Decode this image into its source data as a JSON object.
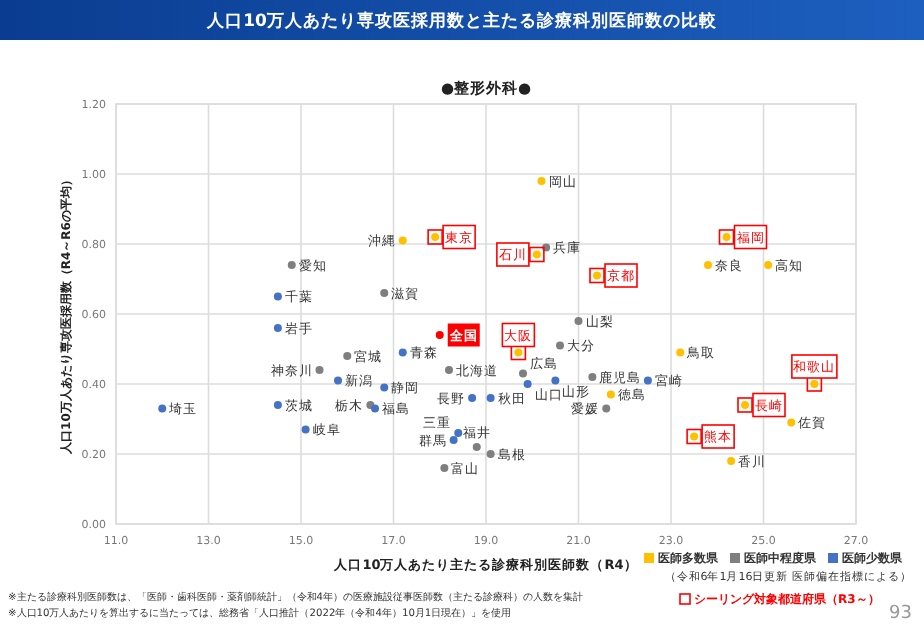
{
  "chart_data": {
    "type": "scatter",
    "title": "人口10万人あたり専攻医採用数と主たる診療科別医師数の比較",
    "subtitle": "●整形外科●",
    "xlabel": "人口10万人あたり主たる診療科別医師数（R4）",
    "ylabel": "人口10万人あたり専攻医採用数（R4～R6の平均）",
    "xlim": [
      11,
      27
    ],
    "ylim": [
      0,
      1.2
    ],
    "xticks": [
      {
        "value": 11,
        "label": "11.0"
      },
      {
        "value": 13,
        "label": "13.0"
      },
      {
        "value": 15,
        "label": "15.0"
      },
      {
        "value": 17,
        "label": "17.0"
      },
      {
        "value": 19,
        "label": "19.0"
      },
      {
        "value": 21,
        "label": "21.0"
      },
      {
        "value": 23,
        "label": "23.0"
      },
      {
        "value": 25,
        "label": "25.0"
      },
      {
        "value": 27,
        "label": "27.0"
      }
    ],
    "yticks": [
      {
        "value": 0,
        "label": "0.00"
      },
      {
        "value": 0.2,
        "label": "0.20"
      },
      {
        "value": 0.4,
        "label": "0.40"
      },
      {
        "value": 0.6,
        "label": "0.60"
      },
      {
        "value": 0.8,
        "label": "0.80"
      },
      {
        "value": 1,
        "label": "1.00"
      },
      {
        "value": 1.2,
        "label": "1.20"
      }
    ],
    "grid": true,
    "legend": "bottom right",
    "marker": "circle",
    "series": [
      {
        "name": "医師多数県",
        "color": "#ffc000",
        "x": [
          17.2,
          17.9,
          20.2,
          20.1,
          21.4,
          24.2,
          23.8,
          25.1,
          19.7,
          21.7,
          23.2,
          23.5,
          24.3,
          24.6,
          25.6,
          26.1
        ],
        "values": [
          0.81,
          0.82,
          0.98,
          0.77,
          0.71,
          0.82,
          0.74,
          0.74,
          0.49,
          0.37,
          0.49,
          0.25,
          0.18,
          0.34,
          0.29,
          0.4
        ]
      },
      {
        "name": "医師中程度県",
        "color": "#7f7f7f",
        "x": [
          14.8,
          16.8,
          16.0,
          15.4,
          16.5,
          18.2,
          18.1,
          18.8,
          19.1,
          19.8,
          20.6,
          21.0,
          21.3,
          21.6,
          20.3
        ],
        "values": [
          0.74,
          0.66,
          0.48,
          0.44,
          0.34,
          0.44,
          0.16,
          0.22,
          0.2,
          0.43,
          0.51,
          0.58,
          0.42,
          0.33,
          0.79
        ]
      },
      {
        "name": "医師少数県",
        "color": "#4472c4",
        "x": [
          14.5,
          14.5,
          17.2,
          15.8,
          12.0,
          14.5,
          15.1,
          16.8,
          16.6,
          18.7,
          18.3,
          18.4,
          19.1,
          19.9,
          20.5,
          22.5
        ],
        "values": [
          0.65,
          0.56,
          0.49,
          0.41,
          0.33,
          0.34,
          0.27,
          0.39,
          0.33,
          0.36,
          0.24,
          0.26,
          0.36,
          0.4,
          0.41,
          0.41
        ]
      },
      {
        "name": "全国",
        "color": "#ff0000",
        "x": [
          18.0
        ],
        "values": [
          0.54
        ]
      },
      {
        "name": "シーリング対象都道府県（R3～）",
        "color": "#ff0000",
        "marker": "square",
        "x": [
          17.9,
          20.1,
          21.4,
          24.2,
          19.7,
          23.5,
          24.6,
          26.1
        ],
        "values": [
          0.82,
          0.77,
          0.71,
          0.82,
          0.49,
          0.25,
          0.34,
          0.4
        ]
      }
    ],
    "annotations": [
      {
        "text": "沖縄",
        "x": 17.2,
        "y": 0.81
      },
      {
        "text": "東京",
        "x": 17.9,
        "y": 0.82
      },
      {
        "text": "岡山",
        "x": 20.2,
        "y": 0.98
      },
      {
        "text": "石川",
        "x": 20.1,
        "y": 0.77
      },
      {
        "text": "京都",
        "x": 21.4,
        "y": 0.71
      },
      {
        "text": "福岡",
        "x": 24.2,
        "y": 0.82
      },
      {
        "text": "奈良",
        "x": 23.8,
        "y": 0.74
      },
      {
        "text": "高知",
        "x": 25.1,
        "y": 0.74
      },
      {
        "text": "大阪",
        "x": 19.7,
        "y": 0.49
      },
      {
        "text": "徳島",
        "x": 21.7,
        "y": 0.37
      },
      {
        "text": "鳥取",
        "x": 23.2,
        "y": 0.49
      },
      {
        "text": "熊本",
        "x": 23.5,
        "y": 0.25
      },
      {
        "text": "香川",
        "x": 24.3,
        "y": 0.18
      },
      {
        "text": "長崎",
        "x": 24.6,
        "y": 0.34
      },
      {
        "text": "佐賀",
        "x": 25.6,
        "y": 0.29
      },
      {
        "text": "和歌山",
        "x": 26.1,
        "y": 0.4
      },
      {
        "text": "愛知",
        "x": 14.8,
        "y": 0.74
      },
      {
        "text": "滋賀",
        "x": 16.8,
        "y": 0.66
      },
      {
        "text": "宮城",
        "x": 16.0,
        "y": 0.48
      },
      {
        "text": "神奈川",
        "x": 15.4,
        "y": 0.44
      },
      {
        "text": "栃木",
        "x": 16.5,
        "y": 0.34
      },
      {
        "text": "北海道",
        "x": 18.2,
        "y": 0.44
      },
      {
        "text": "富山",
        "x": 18.1,
        "y": 0.16
      },
      {
        "text": "福井",
        "x": 18.8,
        "y": 0.22
      },
      {
        "text": "島根",
        "x": 19.1,
        "y": 0.2
      },
      {
        "text": "広島",
        "x": 19.8,
        "y": 0.43
      },
      {
        "text": "大分",
        "x": 20.6,
        "y": 0.51
      },
      {
        "text": "山梨",
        "x": 21.0,
        "y": 0.58
      },
      {
        "text": "鹿児島",
        "x": 21.3,
        "y": 0.42
      },
      {
        "text": "愛媛",
        "x": 21.6,
        "y": 0.33
      },
      {
        "text": "兵庫",
        "x": 20.3,
        "y": 0.79
      },
      {
        "text": "千葉",
        "x": 14.5,
        "y": 0.65
      },
      {
        "text": "岩手",
        "x": 14.5,
        "y": 0.56
      },
      {
        "text": "青森",
        "x": 17.2,
        "y": 0.49
      },
      {
        "text": "新潟",
        "x": 15.8,
        "y": 0.41
      },
      {
        "text": "埼玉",
        "x": 12.0,
        "y": 0.33
      },
      {
        "text": "茨城",
        "x": 14.5,
        "y": 0.34
      },
      {
        "text": "岐阜",
        "x": 15.1,
        "y": 0.27
      },
      {
        "text": "静岡",
        "x": 16.8,
        "y": 0.39
      },
      {
        "text": "福島",
        "x": 16.6,
        "y": 0.33
      },
      {
        "text": "長野",
        "x": 18.7,
        "y": 0.36
      },
      {
        "text": "群馬",
        "x": 18.3,
        "y": 0.24
      },
      {
        "text": "三重",
        "x": 18.4,
        "y": 0.26
      },
      {
        "text": "秋田",
        "x": 19.1,
        "y": 0.36
      },
      {
        "text": "山口",
        "x": 19.9,
        "y": 0.4
      },
      {
        "text": "山形",
        "x": 20.5,
        "y": 0.41
      },
      {
        "text": "宮崎",
        "x": 22.5,
        "y": 0.41
      },
      "※主たる診療科別医師数は、「医師・歯科医師・薬剤師統計」（令和4年）の医療施設従事医師数（主たる診療科）の人数を集計",
      "※人口10万人あたりを算出するに当たっては、総務省「人口推計（2022年（令和4年）10月1日現在）」を使用",
      "（令和6年1月16日更新 医師偏在指標による）",
      "93"
    ]
  }
}
